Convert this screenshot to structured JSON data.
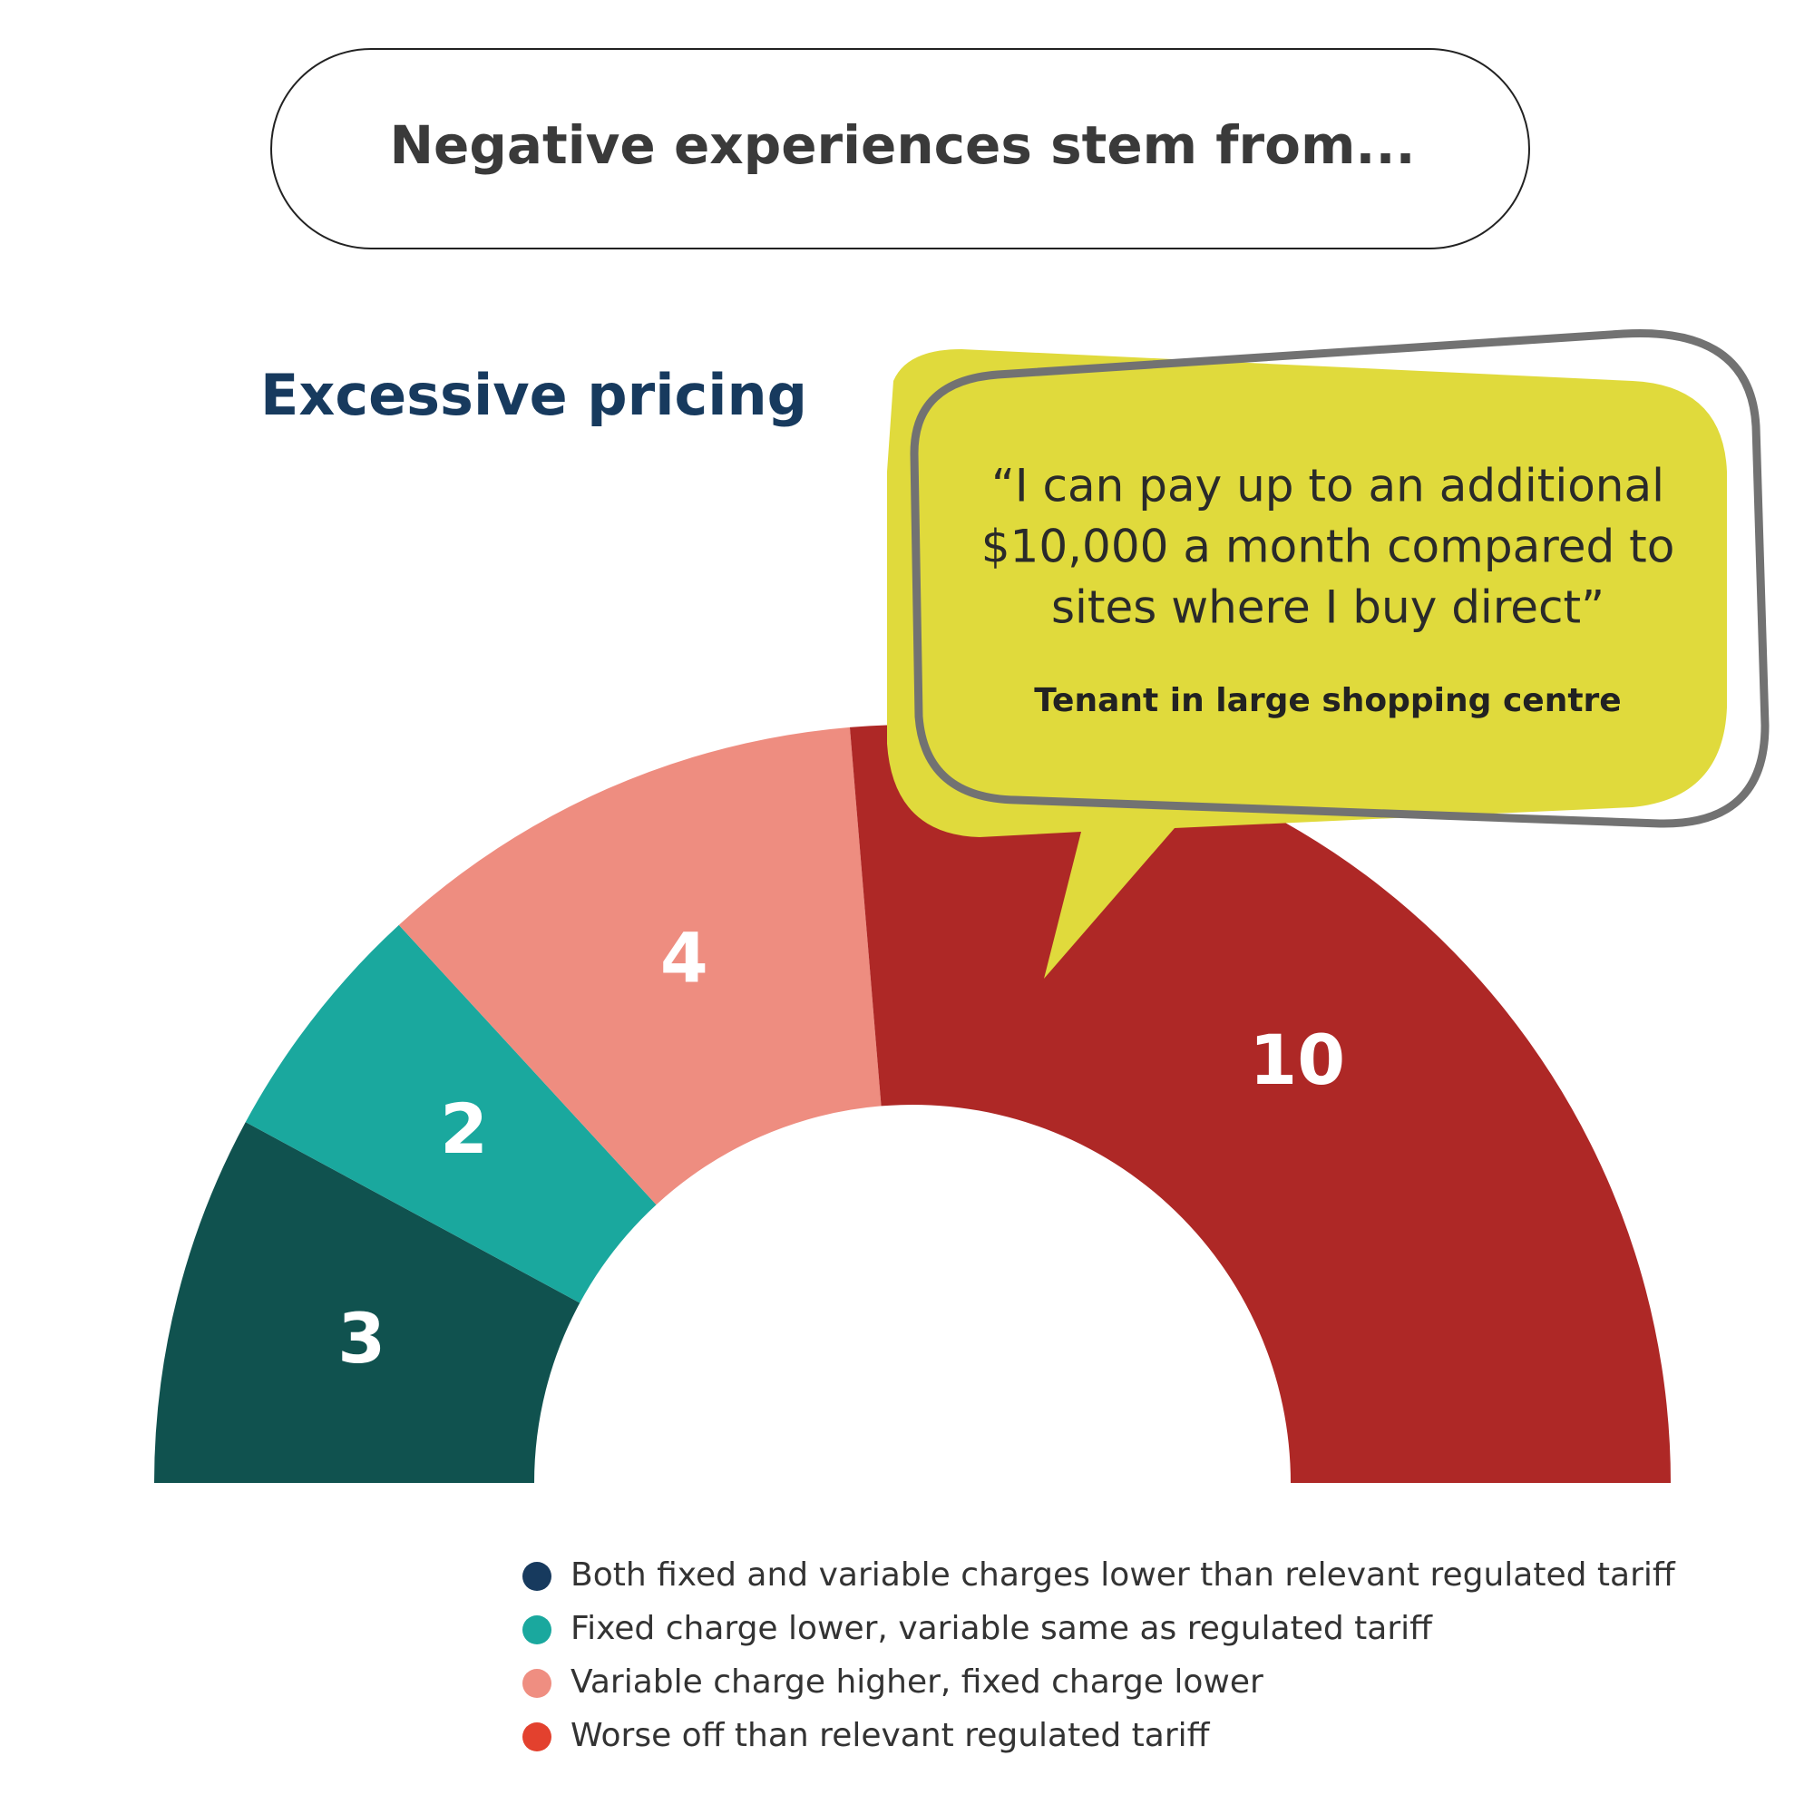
{
  "chart_data": {
    "type": "half-donut",
    "header": "Negative experiences stem from...",
    "title": "Excessive pricing",
    "categories": [
      "Both fixed and variable charges lower than relevant regulated tariff",
      "Fixed charge lower, variable same as regulated tariff",
      "Variable charge higher, fixed charge lower",
      "Worse off than relevant regulated tariff"
    ],
    "values": [
      3,
      2,
      4,
      10
    ],
    "colors": [
      "#10524f",
      "#1aa89e",
      "#ee8d80",
      "#ae2826"
    ],
    "legend_colors": [
      "#173a5e",
      "#1aa89e",
      "#ef8e81",
      "#e3412e"
    ],
    "quote": {
      "lines": [
        "“I can pay up to an additional",
        "$10,000 a month compared to",
        "sites where I buy direct”"
      ],
      "attribution": "Tenant in large shopping centre"
    }
  }
}
